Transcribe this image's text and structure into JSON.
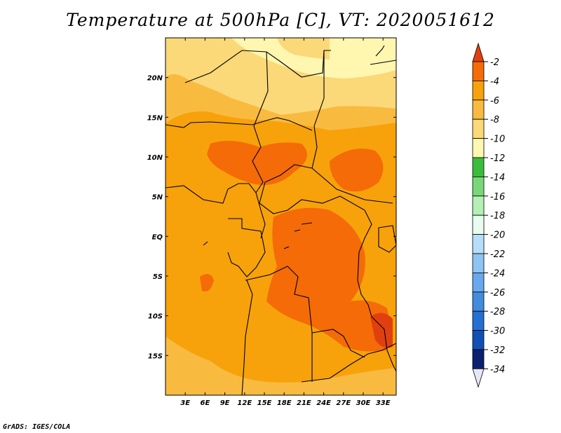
{
  "title": "Temperature at 500hPa [C], VT: 2020051612",
  "credit": "GrADS: IGES/COLA",
  "map": {
    "variable": "Temperature at 500hPa",
    "units": "C",
    "valid_time": "2020051612",
    "lon_range": [
      0,
      35
    ],
    "lat_range": [
      -20,
      25
    ],
    "x_tick_labels": [
      "3E",
      "6E",
      "9E",
      "12E",
      "15E",
      "18E",
      "21E",
      "24E",
      "27E",
      "30E",
      "33E"
    ],
    "x_tick_values": [
      3,
      6,
      9,
      12,
      15,
      18,
      21,
      24,
      27,
      30,
      33
    ],
    "y_tick_labels": [
      "20N",
      "15N",
      "10N",
      "5N",
      "EQ",
      "5S",
      "10S",
      "15S"
    ],
    "y_tick_values": [
      20,
      15,
      10,
      5,
      0,
      -5,
      -10,
      -15
    ]
  },
  "colorbar": {
    "labels": [
      "-2",
      "-4",
      "-6",
      "-8",
      "-10",
      "-12",
      "-14",
      "-16",
      "-18",
      "-20",
      "-22",
      "-24",
      "-26",
      "-28",
      "-30",
      "-32",
      "-34"
    ],
    "colors": [
      "#e04010",
      "#f46b08",
      "#f7a20a",
      "#f9ba40",
      "#fbd878",
      "#fff6b0",
      "#3cbc3c",
      "#78d878",
      "#b4f0b4",
      "#e8fcf0",
      "#b6def8",
      "#8ec4f4",
      "#68a8ee",
      "#428cdc",
      "#2470d2",
      "#1050b4",
      "#0c2070",
      "#e6e6f8"
    ]
  },
  "colors": {
    "warm": "#f46b08",
    "mid": "#f7a20a",
    "cool": "#f9ba40",
    "cooler": "#fbd878",
    "coolest": "#fff6b0",
    "border": "#000000"
  }
}
